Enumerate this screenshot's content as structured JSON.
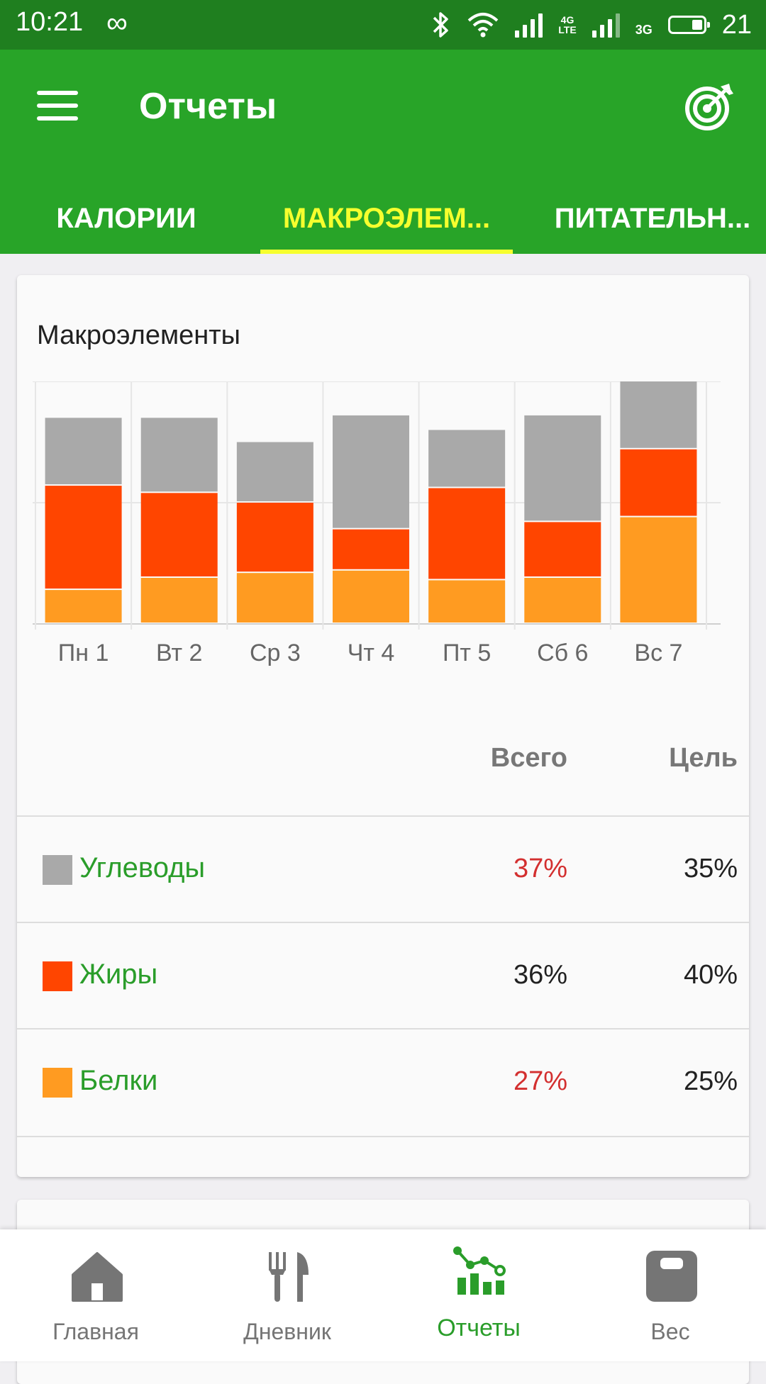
{
  "status_bar": {
    "time": "10:21",
    "infinity": "∞",
    "net_4g": "4G",
    "net_lte": "LTE",
    "net_3g": "3G",
    "battery": "21"
  },
  "appbar": {
    "title": "Отчеты",
    "tabs": [
      {
        "label": "КАЛОРИИ",
        "active": false
      },
      {
        "label": "МАКРОЭЛЕМ...",
        "active": true
      },
      {
        "label": "ПИТАТЕЛЬН...",
        "active": false
      }
    ]
  },
  "card": {
    "title": "Макроэлементы",
    "header_total": "Всего",
    "header_goal": "Цель",
    "rows": [
      {
        "name": "Углеводы",
        "total": "37%",
        "goal": "35%",
        "color": "#a9a9a9"
      },
      {
        "name": "Жиры",
        "total": "36%",
        "goal": "40%",
        "color": "#ff4500"
      },
      {
        "name": "Белки",
        "total": "27%",
        "goal": "25%",
        "color": "#ff9b21"
      }
    ]
  },
  "chart_data": {
    "type": "bar",
    "stacked": true,
    "categories": [
      "Пн 1",
      "Вт 2",
      "Ср 3",
      "Чт 4",
      "Пт 5",
      "Сб 6",
      "Вс 7"
    ],
    "series": [
      {
        "name": "Белки",
        "color": "#ff9b21",
        "values": [
          14,
          19,
          21,
          22,
          18,
          19,
          44
        ]
      },
      {
        "name": "Жиры",
        "color": "#ff4500",
        "values": [
          43,
          35,
          29,
          17,
          38,
          23,
          28
        ]
      },
      {
        "name": "Углеводы",
        "color": "#a9a9a9",
        "values": [
          28,
          31,
          25,
          47,
          24,
          44,
          28
        ]
      }
    ],
    "ylim": [
      0,
      100
    ],
    "grid": true,
    "legend": "none"
  },
  "bottom_nav": [
    {
      "label": "Главная",
      "icon": "home-icon",
      "active": false
    },
    {
      "label": "Дневник",
      "icon": "fork-knife-icon",
      "active": false
    },
    {
      "label": "Отчеты",
      "icon": "chart-icon",
      "active": true
    },
    {
      "label": "Вес",
      "icon": "scale-icon",
      "active": false
    }
  ]
}
